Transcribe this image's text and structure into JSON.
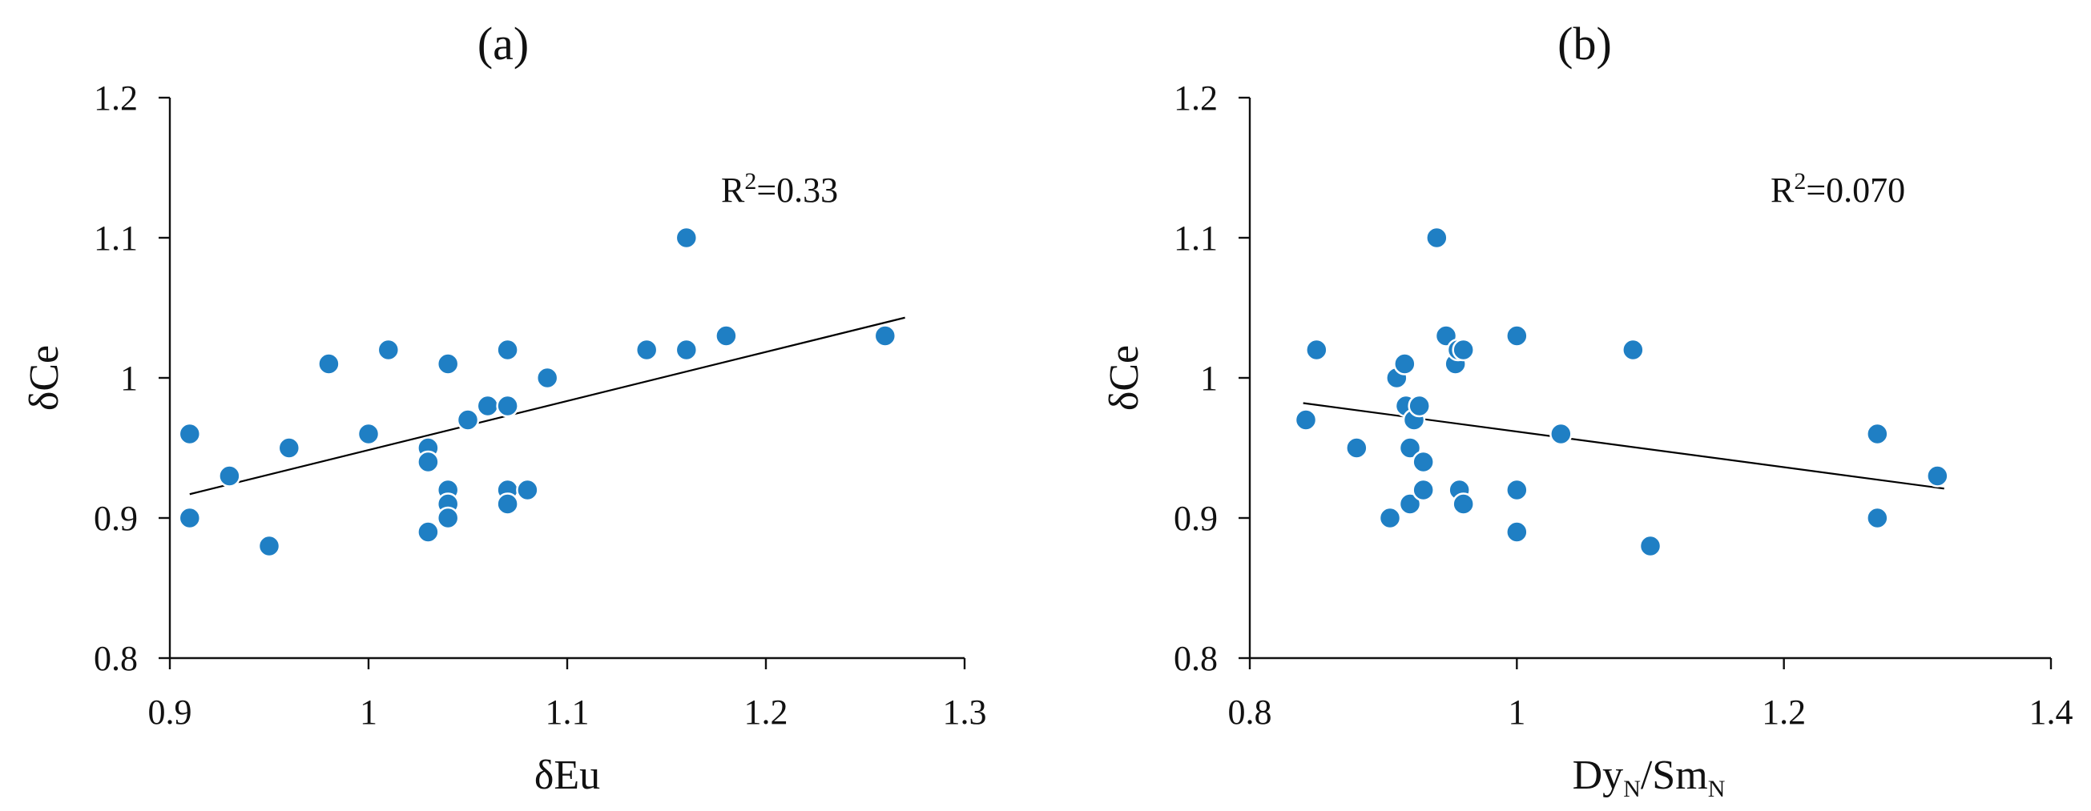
{
  "chart_data": [
    {
      "type": "scatter",
      "title": "(a)",
      "xlabel": "δEu",
      "ylabel": "δCe",
      "xlim": [
        0.9,
        1.3
      ],
      "ylim": [
        0.8,
        1.2
      ],
      "xticks": [
        "0.9",
        "1",
        "1.1",
        "1.2",
        "1.3"
      ],
      "yticks": [
        "0.8",
        "0.9",
        "1",
        "1.1",
        "1.2"
      ],
      "annotation": "R2=0.33",
      "annotation_parts": {
        "base": "R",
        "sup": "2",
        "rest": "=0.33"
      },
      "trendline": {
        "x": [
          0.91,
          1.27
        ],
        "y": [
          0.917,
          1.043
        ]
      },
      "marker_color": "#1f7fc4",
      "grid": false,
      "points": [
        {
          "x": 0.91,
          "y": 0.96
        },
        {
          "x": 0.91,
          "y": 0.9
        },
        {
          "x": 0.93,
          "y": 0.93
        },
        {
          "x": 0.95,
          "y": 0.88
        },
        {
          "x": 0.96,
          "y": 0.95
        },
        {
          "x": 0.98,
          "y": 1.01
        },
        {
          "x": 1.0,
          "y": 0.96
        },
        {
          "x": 1.01,
          "y": 1.02
        },
        {
          "x": 1.03,
          "y": 0.95
        },
        {
          "x": 1.03,
          "y": 0.94
        },
        {
          "x": 1.03,
          "y": 0.89
        },
        {
          "x": 1.04,
          "y": 1.01
        },
        {
          "x": 1.04,
          "y": 0.92
        },
        {
          "x": 1.04,
          "y": 0.91
        },
        {
          "x": 1.04,
          "y": 0.9
        },
        {
          "x": 1.05,
          "y": 0.97
        },
        {
          "x": 1.06,
          "y": 0.98
        },
        {
          "x": 1.07,
          "y": 1.02
        },
        {
          "x": 1.07,
          "y": 0.98
        },
        {
          "x": 1.07,
          "y": 0.92
        },
        {
          "x": 1.07,
          "y": 0.91
        },
        {
          "x": 1.08,
          "y": 0.92
        },
        {
          "x": 1.09,
          "y": 1.0
        },
        {
          "x": 1.14,
          "y": 1.02
        },
        {
          "x": 1.16,
          "y": 1.1
        },
        {
          "x": 1.16,
          "y": 1.02
        },
        {
          "x": 1.18,
          "y": 1.03
        },
        {
          "x": 1.26,
          "y": 1.03
        }
      ]
    },
    {
      "type": "scatter",
      "title": "(b)",
      "xlabel": "DyN/SmN",
      "xlabel_parts": {
        "a": "Dy",
        "a_sub": "N",
        "mid": "/Sm",
        "b_sub": "N"
      },
      "ylabel": "δCe",
      "xlim": [
        0.8,
        1.4
      ],
      "ylim": [
        0.8,
        1.2
      ],
      "xticks": [
        "0.8",
        "1",
        "1.2",
        "1.4"
      ],
      "yticks": [
        "0.8",
        "0.9",
        "1",
        "1.1",
        "1.2"
      ],
      "annotation": "R2=0.070",
      "annotation_parts": {
        "base": "R",
        "sup": "2",
        "rest": "=0.070"
      },
      "trendline": {
        "x": [
          0.84,
          1.32
        ],
        "y": [
          0.982,
          0.921
        ]
      },
      "marker_color": "#1f7fc4",
      "grid": false,
      "points": [
        {
          "x": 0.842,
          "y": 0.97
        },
        {
          "x": 0.85,
          "y": 1.02
        },
        {
          "x": 0.88,
          "y": 0.95
        },
        {
          "x": 0.905,
          "y": 0.9
        },
        {
          "x": 0.91,
          "y": 1.0
        },
        {
          "x": 0.916,
          "y": 1.01
        },
        {
          "x": 0.917,
          "y": 0.98
        },
        {
          "x": 0.92,
          "y": 0.95
        },
        {
          "x": 0.92,
          "y": 0.91
        },
        {
          "x": 0.923,
          "y": 0.97
        },
        {
          "x": 0.927,
          "y": 0.98
        },
        {
          "x": 0.93,
          "y": 0.94
        },
        {
          "x": 0.93,
          "y": 0.92
        },
        {
          "x": 0.94,
          "y": 1.1
        },
        {
          "x": 0.947,
          "y": 1.03
        },
        {
          "x": 0.954,
          "y": 1.01
        },
        {
          "x": 0.956,
          "y": 1.02
        },
        {
          "x": 0.957,
          "y": 0.92
        },
        {
          "x": 0.96,
          "y": 1.02
        },
        {
          "x": 0.96,
          "y": 0.91
        },
        {
          "x": 1.0,
          "y": 1.03
        },
        {
          "x": 1.0,
          "y": 0.92
        },
        {
          "x": 1.0,
          "y": 0.89
        },
        {
          "x": 1.033,
          "y": 0.96
        },
        {
          "x": 1.087,
          "y": 1.02
        },
        {
          "x": 1.1,
          "y": 0.88
        },
        {
          "x": 1.27,
          "y": 0.96
        },
        {
          "x": 1.27,
          "y": 0.9
        },
        {
          "x": 1.315,
          "y": 0.93
        }
      ]
    }
  ]
}
